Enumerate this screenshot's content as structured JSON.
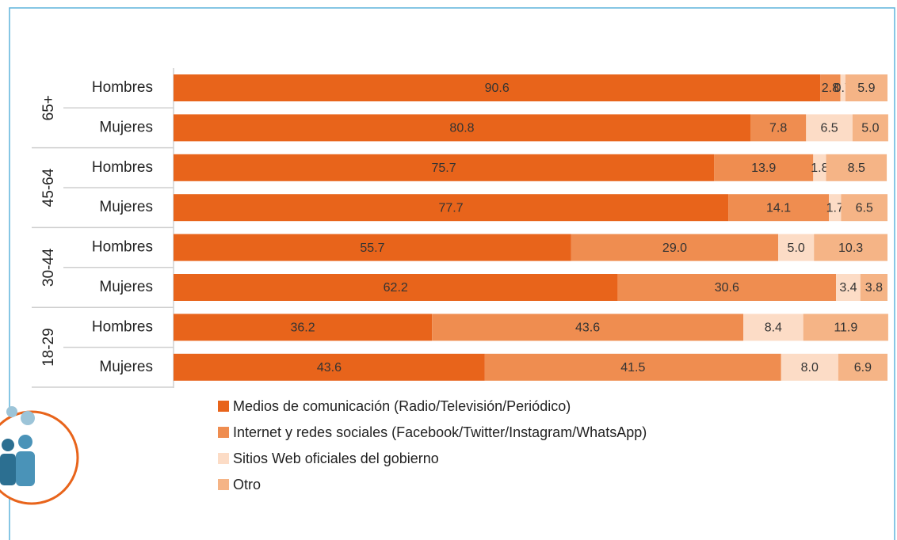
{
  "chart_data": {
    "type": "stacked-bar-horizontal",
    "groups": [
      "65+",
      "45-64",
      "30-44",
      "18-29"
    ],
    "categories": [
      "Hombres",
      "Mujeres",
      "Hombres",
      "Mujeres",
      "Hombres",
      "Mujeres",
      "Hombres",
      "Mujeres"
    ],
    "xlim": [
      0,
      100
    ],
    "legend": "bottom",
    "series": [
      {
        "name": "Medios de comunicación (Radio/Televisión/Periódico)",
        "color": "#e8641b",
        "values": [
          90.6,
          80.8,
          75.7,
          77.7,
          55.7,
          62.2,
          36.2,
          43.6
        ],
        "value_labels": [
          "90.6",
          "80.8",
          "75.7",
          "77.7",
          "55.7",
          "62.2",
          "36.2",
          "43.6"
        ]
      },
      {
        "name": "Internet y redes sociales (Facebook/Twitter/Instagram/WhatsApp)",
        "color": "#ef8d50",
        "values": [
          2.8,
          7.8,
          13.9,
          14.1,
          29.0,
          30.6,
          43.6,
          41.5
        ],
        "value_labels": [
          "2.8",
          "7.8",
          "13.9",
          "14.1",
          "29.0",
          "30.6",
          "43.6",
          "41.5"
        ]
      },
      {
        "name": "Sitios Web oficiales del gobierno",
        "color": "#fcdcc6",
        "values": [
          0.7,
          6.5,
          1.8,
          1.7,
          5.0,
          3.4,
          8.4,
          8.0
        ],
        "value_labels": [
          "0.7",
          "6.5",
          "1.8",
          "1.7",
          "5.0",
          "3.4",
          "8.4",
          "8.0"
        ]
      },
      {
        "name": "Otro",
        "color": "#f5b486",
        "values": [
          5.9,
          5.0,
          8.5,
          6.5,
          10.3,
          3.8,
          11.9,
          6.9
        ],
        "value_labels": [
          "5.9",
          "5.0",
          "8.5",
          "6.5",
          "10.3",
          "3.8",
          "11.9",
          "6.9"
        ]
      }
    ]
  }
}
